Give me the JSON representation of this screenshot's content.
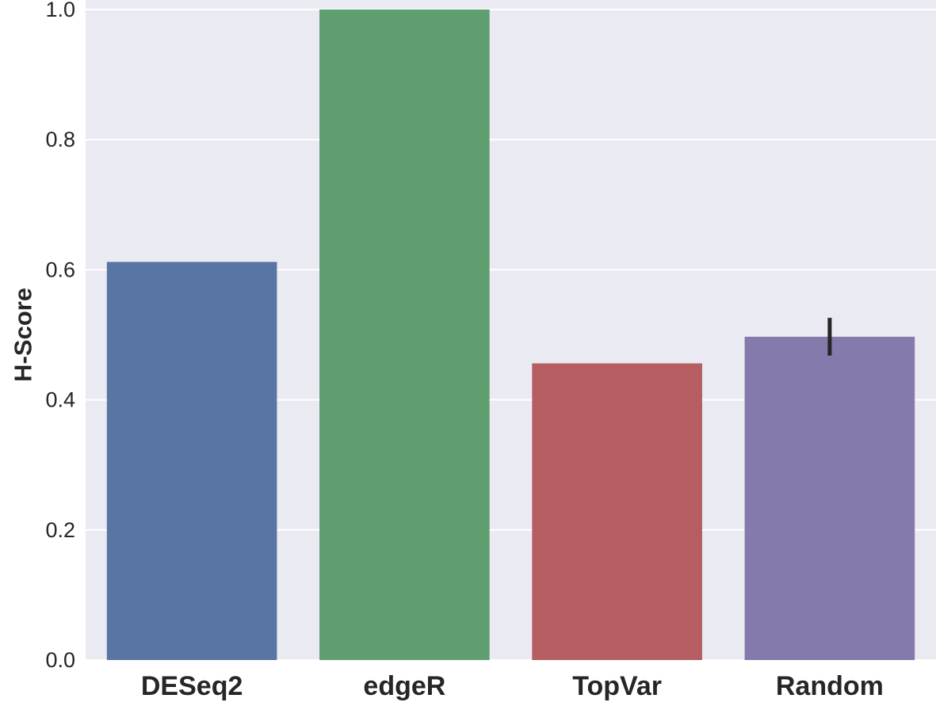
{
  "chart_data": {
    "type": "bar",
    "title": "",
    "xlabel": "",
    "ylabel": "H-Score",
    "categories": [
      "DESeq2",
      "edgeR",
      "TopVar",
      "Random"
    ],
    "values": [
      0.612,
      1.0,
      0.456,
      0.497
    ],
    "error_bars": [
      null,
      null,
      null,
      [
        0.468,
        0.526
      ]
    ],
    "colors": [
      "#5875a4",
      "#5f9e6e",
      "#b55d60",
      "#857aab"
    ],
    "ylim": [
      0,
      1.0
    ],
    "yticks": [
      "0.0",
      "0.2",
      "0.4",
      "0.6",
      "0.8",
      "1.0"
    ],
    "grid": true,
    "background": "#eaeaf2",
    "grid_color": "#ffffff",
    "error_bar_color": "#262626"
  }
}
